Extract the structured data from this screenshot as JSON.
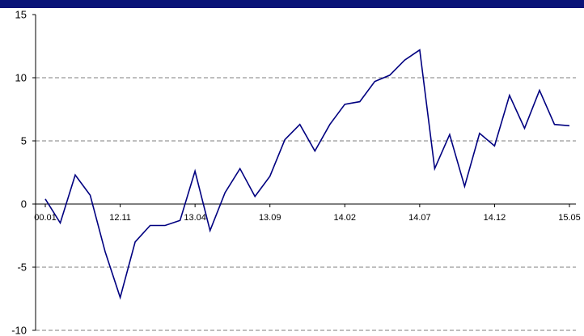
{
  "chart_data": {
    "type": "line",
    "title": "",
    "xlabel": "",
    "ylabel": "",
    "ylim": [
      -10,
      15
    ],
    "yticks": [
      "15",
      "10",
      "5",
      "0",
      "-5",
      "-10"
    ],
    "xtick_labels": [
      "00.01",
      "12.11",
      "13.04",
      "13.09",
      "14.02",
      "14.07",
      "14.12",
      "15.05"
    ],
    "grid": "dashed horizontal lines at 10, 5, -5, -10",
    "series": [
      {
        "color": "#000080",
        "values": [
          0.4,
          -1.5,
          2.3,
          0.7,
          -3.8,
          -7.4,
          -3.0,
          -1.7,
          -1.7,
          -1.3,
          2.6,
          -2.1,
          0.9,
          2.8,
          0.6,
          2.2,
          5.1,
          6.3,
          4.2,
          6.3,
          7.9,
          8.1,
          9.7,
          10.2,
          11.4,
          12.2,
          2.8,
          5.5,
          1.4,
          5.6,
          4.6,
          8.6,
          6.0,
          9.0,
          6.3,
          6.2
        ]
      }
    ]
  },
  "colors": {
    "topbar": "#0a1478",
    "line": "#000080",
    "grid": "#555555"
  }
}
